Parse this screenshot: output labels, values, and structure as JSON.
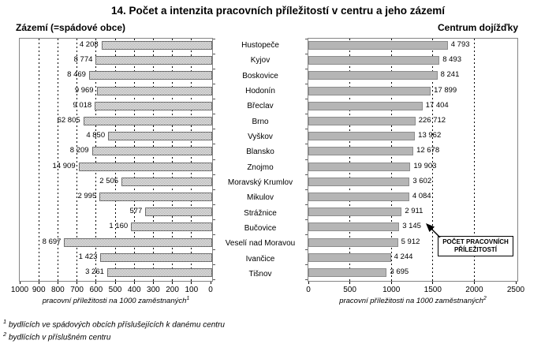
{
  "title": "14. Počet a intenzita pracovních příležitostí v centru a jeho zázemí",
  "left_chart": {
    "header": "Zázemí (=spádové obce)",
    "xlabel": "pracovní příležitosti na 1000 zaměstnaných",
    "xlabel_sup": "1"
  },
  "right_chart": {
    "header": "Centrum dojížďky",
    "xlabel": "pracovní příležitosti na 1000 zaměstnaných",
    "xlabel_sup": "2"
  },
  "callout": {
    "line1": "POČET PRACOVNÍCH",
    "line2": "PŘÍLEŽITOSTÍ"
  },
  "footnotes": [
    {
      "sup": "1",
      "text": "bydlících ve spádových obcích příslušejících k danému centru"
    },
    {
      "sup": "2",
      "text": "bydlících v příslušném centru"
    }
  ],
  "colors": {
    "left_bar_pattern_dark": "#9a9a9a",
    "left_bar_pattern_light": "#ffffff",
    "left_bar_border": "#6e6e6e",
    "right_bar_fill": "#b5b5b5",
    "right_bar_border": "#8c8c8c",
    "plot_border": "#848484",
    "gridline": "#000000",
    "text": "#000000",
    "background": "#ffffff"
  },
  "chart_data": [
    {
      "type": "bar",
      "orientation": "horizontal",
      "title": "Zázemí (=spádové obce)",
      "categories": [
        "Hustopeče",
        "Kyjov",
        "Boskovice",
        "Hodonín",
        "Břeclav",
        "Brno",
        "Vyškov",
        "Blansko",
        "Znojmo",
        "Moravský Krumlov",
        "Mikulov",
        "Strážnice",
        "Bučovice",
        "Veselí nad Moravou",
        "Ivančice",
        "Tišnov"
      ],
      "series": [
        {
          "name": "intenzita (délka sloupce): pracovní příležitosti na 1000 zaměstnaných¹",
          "values": [
            580,
            610,
            645,
            605,
            615,
            675,
            545,
            630,
            700,
            475,
            590,
            350,
            425,
            775,
            585,
            550
          ]
        },
        {
          "name": "POČET PRACOVNÍCH PŘÍLEŽITOSTÍ (popisky)",
          "values": [
            4208,
            8774,
            8469,
            9969,
            9018,
            62805,
            4850,
            8209,
            14909,
            2505,
            2995,
            577,
            1160,
            8697,
            1423,
            3261
          ]
        }
      ],
      "value_labels": [
        "4 208",
        "8 774",
        "8 469",
        "9 969",
        "9 018",
        "62 805",
        "4 850",
        "8 209",
        "14 909",
        "2 505",
        "2 995",
        "577",
        "1 160",
        "8 697",
        "1 423",
        "3 261"
      ],
      "xlabel": "pracovní příležitosti na 1000 zaměstnaných¹",
      "xlim": [
        1000,
        0
      ],
      "axis_reversed": true,
      "ticks": [
        1000,
        900,
        800,
        700,
        600,
        500,
        400,
        300,
        200,
        100,
        0
      ],
      "gridline_step": 100,
      "grid": true,
      "legend": "none"
    },
    {
      "type": "bar",
      "orientation": "horizontal",
      "title": "Centrum dojížďky",
      "categories": [
        "Hustopeče",
        "Kyjov",
        "Boskovice",
        "Hodonín",
        "Břeclav",
        "Brno",
        "Vyškov",
        "Blansko",
        "Znojmo",
        "Moravský Krumlov",
        "Mikulov",
        "Strážnice",
        "Bučovice",
        "Veselí nad Moravou",
        "Ivančice",
        "Tišnov"
      ],
      "series": [
        {
          "name": "intenzita (délka sloupce): pracovní příležitosti na 1000 zaměstnaných²",
          "values": [
            1680,
            1580,
            1555,
            1475,
            1375,
            1290,
            1285,
            1265,
            1230,
            1220,
            1215,
            1125,
            1095,
            1080,
            995,
            945
          ]
        },
        {
          "name": "POČET PRACOVNÍCH PŘÍLEŽITOSTÍ (popisky)",
          "values": [
            4793,
            8493,
            8241,
            17899,
            17404,
            226712,
            13962,
            12678,
            19903,
            3602,
            4084,
            2911,
            3145,
            5912,
            4244,
            3695
          ]
        }
      ],
      "value_labels": [
        "4 793",
        "8 493",
        "8 241",
        "17 899",
        "17 404",
        "226 712",
        "13 962",
        "12 678",
        "19 903",
        "3 602",
        "4 084",
        "2 911",
        "3 145",
        "5 912",
        "4 244",
        "3 695"
      ],
      "xlabel": "pracovní příležitosti na 1000 zaměstnaných²",
      "xlim": [
        0,
        2500
      ],
      "axis_reversed": false,
      "ticks": [
        0,
        500,
        1000,
        1500,
        2000,
        2500
      ],
      "gridline_step": 500,
      "grid": true,
      "legend": "none"
    }
  ]
}
